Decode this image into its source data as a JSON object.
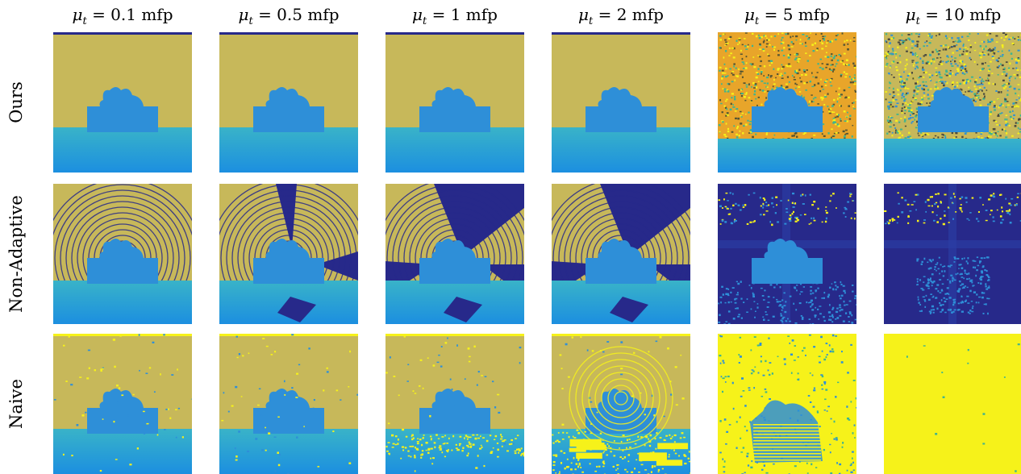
{
  "figure": {
    "columns": [
      {
        "symbol": "μ",
        "subscript": "t",
        "value": "= 0.1 mfp"
      },
      {
        "symbol": "μ",
        "subscript": "t",
        "value": "= 0.5 mfp"
      },
      {
        "symbol": "μ",
        "subscript": "t",
        "value": "= 1 mfp"
      },
      {
        "symbol": "μ",
        "subscript": "t",
        "value": "= 2 mfp"
      },
      {
        "symbol": "μ",
        "subscript": "t",
        "value": "= 5 mfp"
      },
      {
        "symbol": "μ",
        "subscript": "t",
        "value": "= 10 mfp"
      }
    ],
    "rows": [
      {
        "label": "Ours"
      },
      {
        "label": "Non-Adaptive"
      },
      {
        "label": "Naive"
      }
    ]
  },
  "colors": {
    "background_tan": "#c7b85a",
    "object_blue": "#2e8fd8",
    "floor_cyan": "#1fa3dd",
    "dark_navy": "#27298a",
    "bright_yellow": "#f6f21a",
    "orange_noise": "#e8a52a",
    "teal_noise": "#3fb48f"
  },
  "cells": [
    {
      "row": 0,
      "col": 0,
      "style": "clean"
    },
    {
      "row": 0,
      "col": 1,
      "style": "clean"
    },
    {
      "row": 0,
      "col": 2,
      "style": "clean"
    },
    {
      "row": 0,
      "col": 3,
      "style": "clean"
    },
    {
      "row": 0,
      "col": 4,
      "style": "noisy-yellow"
    },
    {
      "row": 0,
      "col": 5,
      "style": "noisy-mixed"
    },
    {
      "row": 1,
      "col": 0,
      "style": "rings"
    },
    {
      "row": 1,
      "col": 1,
      "style": "rings-dark"
    },
    {
      "row": 1,
      "col": 2,
      "style": "rings-darker"
    },
    {
      "row": 1,
      "col": 3,
      "style": "rings-darker"
    },
    {
      "row": 1,
      "col": 4,
      "style": "navy"
    },
    {
      "row": 1,
      "col": 5,
      "style": "navy-faint"
    },
    {
      "row": 2,
      "col": 0,
      "style": "naive"
    },
    {
      "row": 2,
      "col": 1,
      "style": "naive"
    },
    {
      "row": 2,
      "col": 2,
      "style": "naive-floor"
    },
    {
      "row": 2,
      "col": 3,
      "style": "naive-floor-strong"
    },
    {
      "row": 2,
      "col": 4,
      "style": "naive-yellow"
    },
    {
      "row": 2,
      "col": 5,
      "style": "solid-yellow"
    }
  ]
}
